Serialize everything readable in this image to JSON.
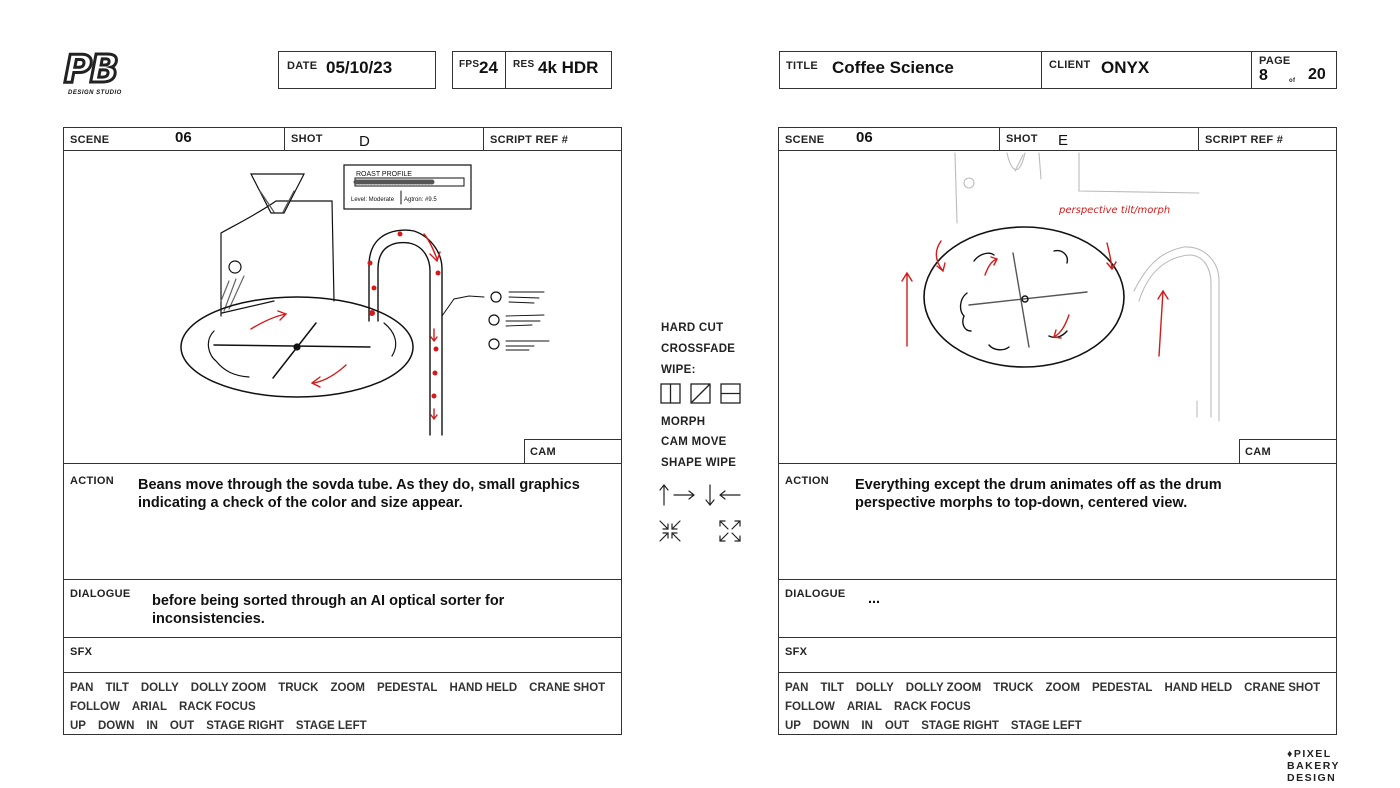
{
  "logo": {
    "mark": "PB",
    "subtitle": "DESIGN STUDIO"
  },
  "header": {
    "date_label": "DATE",
    "date": "05/10/23",
    "fps_label": "FPS",
    "fps": "24",
    "res_label": "RES",
    "res": "4k HDR",
    "title_label": "TITLE",
    "title": "Coffee Science",
    "client_label": "CLIENT",
    "client": "ONYX",
    "page_label": "PAGE",
    "page": "8",
    "of_label": "of",
    "page_total": "20"
  },
  "labels": {
    "scene": "SCENE",
    "shot": "SHOT",
    "script_ref": "SCRIPT REF #",
    "cam": "CAM",
    "action": "ACTION",
    "dialogue": "DIALOGUE",
    "sfx": "SFX"
  },
  "camera_moves": {
    "line1": [
      "PAN",
      "TILT",
      "DOLLY",
      "DOLLY ZOOM",
      "TRUCK",
      "ZOOM",
      "PEDESTAL",
      "HAND HELD",
      "CRANE SHOT"
    ],
    "line2": [
      "FOLLOW",
      "ARIAL",
      "RACK FOCUS"
    ],
    "line3": [
      "UP",
      "DOWN",
      "IN",
      "OUT",
      "STAGE RIGHT",
      "STAGE LEFT"
    ]
  },
  "panels": [
    {
      "scene": "06",
      "shot": "D",
      "action": "Beans move through the sovda tube. As they do, small graphics indicating a check of the color and size appear.",
      "dialogue": "before being sorted through an AI optical sorter for inconsistencies.",
      "sketch": {
        "roast_title": "ROAST PROFILE",
        "roast_level": "Level: Moderate",
        "roast_agtron": "Agtron: #9.5"
      }
    },
    {
      "scene": "06",
      "shot": "E",
      "action": "Everything except the drum animates off as the drum perspective morphs to top-down, centered view.",
      "dialogue": "...",
      "sketch": {
        "note": "perspective tilt/morph"
      }
    }
  ],
  "transitions": {
    "hard_cut": "HARD CUT",
    "crossfade": "CROSSFADE",
    "wipe": "WIPE:",
    "morph": "MORPH",
    "cam_move": "CAM MOVE",
    "shape_wipe": "SHAPE WIPE"
  },
  "footer": {
    "line1": "PIXEL",
    "line2": "BAKERY",
    "line3": "DESIGN"
  },
  "colors": {
    "ink": "#111111",
    "accent": "#d41a1a",
    "border": "#333333"
  }
}
